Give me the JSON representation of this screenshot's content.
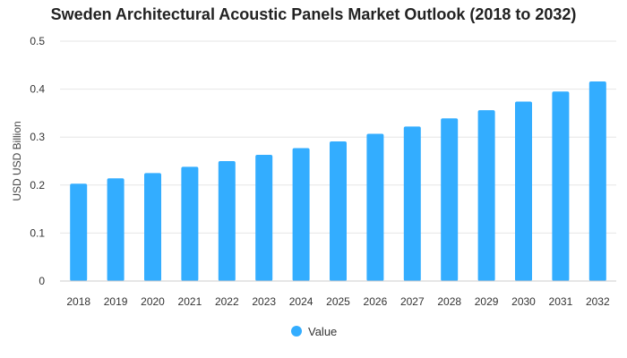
{
  "chart_data": {
    "type": "bar",
    "title": "Sweden Architectural Acoustic Panels Market Outlook (2018 to 2032)",
    "xlabel": "",
    "ylabel": "USD USD Billion",
    "categories": [
      "2018",
      "2019",
      "2020",
      "2021",
      "2022",
      "2023",
      "2024",
      "2025",
      "2026",
      "2027",
      "2028",
      "2029",
      "2030",
      "2031",
      "2032"
    ],
    "series": [
      {
        "name": "Value",
        "color": "#33adff",
        "values": [
          0.203,
          0.214,
          0.225,
          0.238,
          0.25,
          0.263,
          0.277,
          0.291,
          0.307,
          0.322,
          0.339,
          0.356,
          0.374,
          0.395,
          0.416
        ]
      }
    ],
    "ylim": [
      0,
      0.5
    ],
    "yticks": [
      "0",
      "0.1",
      "0.2",
      "0.3",
      "0.4",
      "0.5"
    ],
    "grid": true,
    "legend_position": "bottom-center"
  }
}
